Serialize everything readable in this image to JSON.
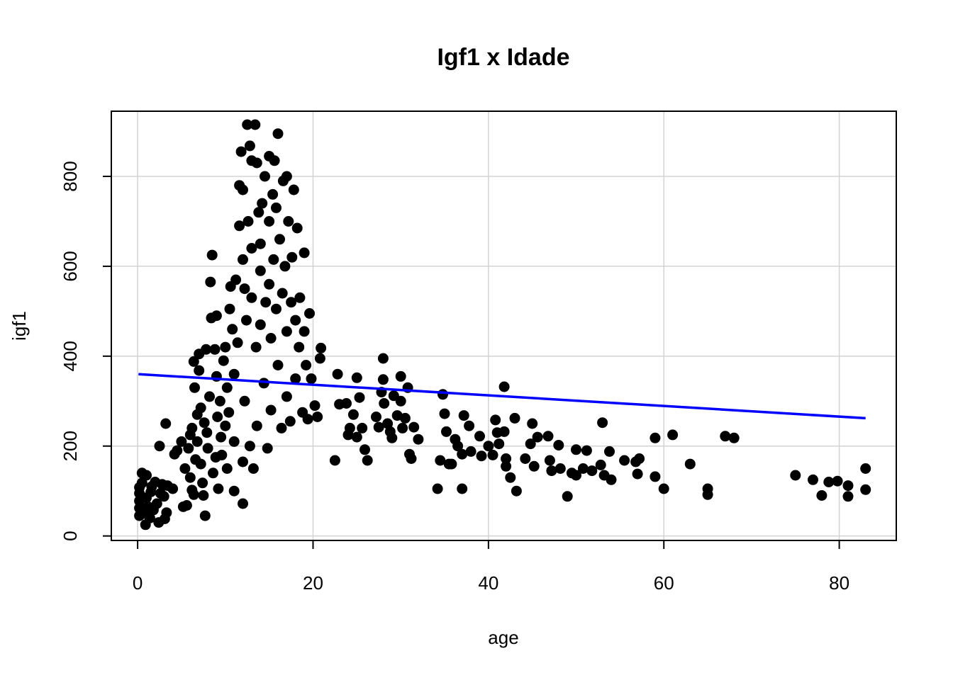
{
  "chart_data": {
    "type": "scatter",
    "title": "Igf1 x Idade",
    "xlabel": "age",
    "ylabel": "igf1",
    "xlim": [
      -3,
      86.5
    ],
    "ylim": [
      -10,
      945
    ],
    "x_ticks": [
      0,
      20,
      40,
      60,
      80
    ],
    "y_ticks": [
      0,
      200,
      400,
      600,
      800
    ],
    "grid": true,
    "point_color": "#000000",
    "trend_color": "#0000ff",
    "trend_line": {
      "x": [
        0.1,
        83
      ],
      "y": [
        360,
        262
      ]
    },
    "series": [
      {
        "points": [
          [
            0.2,
            108
          ],
          [
            0.2,
            95
          ],
          [
            0.2,
            78
          ],
          [
            0.2,
            62
          ],
          [
            0.2,
            45
          ],
          [
            0.5,
            140
          ],
          [
            0.5,
            118
          ],
          [
            0.8,
            50
          ],
          [
            0.9,
            25
          ],
          [
            1.0,
            135
          ],
          [
            1.0,
            85
          ],
          [
            1.2,
            65
          ],
          [
            1.4,
            40
          ],
          [
            1.5,
            98
          ],
          [
            1.6,
            110
          ],
          [
            1.8,
            58
          ],
          [
            2.0,
            120
          ],
          [
            2.2,
            72
          ],
          [
            2.4,
            30
          ],
          [
            2.5,
            200
          ],
          [
            2.6,
            95
          ],
          [
            2.8,
            115
          ],
          [
            3.0,
            88
          ],
          [
            3.1,
            38
          ],
          [
            3.2,
            250
          ],
          [
            3.3,
            52
          ],
          [
            3.4,
            112
          ],
          [
            4.0,
            105
          ],
          [
            4.2,
            182
          ],
          [
            4.5,
            190
          ],
          [
            5.0,
            210
          ],
          [
            5.2,
            65
          ],
          [
            5.4,
            150
          ],
          [
            5.6,
            68
          ],
          [
            5.8,
            195
          ],
          [
            6.0,
            225
          ],
          [
            6.0,
            130
          ],
          [
            6.2,
            102
          ],
          [
            6.2,
            240
          ],
          [
            6.4,
            388
          ],
          [
            6.4,
            92
          ],
          [
            6.5,
            330
          ],
          [
            6.6,
            170
          ],
          [
            6.8,
            270
          ],
          [
            6.8,
            210
          ],
          [
            7.0,
            405
          ],
          [
            7.0,
            368
          ],
          [
            7.2,
            285
          ],
          [
            7.2,
            160
          ],
          [
            7.4,
            118
          ],
          [
            7.5,
            90
          ],
          [
            7.6,
            252
          ],
          [
            7.7,
            45
          ],
          [
            7.8,
            415
          ],
          [
            7.9,
            230
          ],
          [
            8.0,
            195
          ],
          [
            8.2,
            310
          ],
          [
            8.3,
            565
          ],
          [
            8.4,
            485
          ],
          [
            8.5,
            625
          ],
          [
            8.6,
            140
          ],
          [
            8.8,
            415
          ],
          [
            8.9,
            175
          ],
          [
            9.0,
            490
          ],
          [
            9.0,
            355
          ],
          [
            9.1,
            265
          ],
          [
            9.2,
            105
          ],
          [
            9.4,
            300
          ],
          [
            9.5,
            220
          ],
          [
            9.6,
            180
          ],
          [
            9.8,
            390
          ],
          [
            10.0,
            245
          ],
          [
            10.0,
            420
          ],
          [
            10.2,
            150
          ],
          [
            10.2,
            330
          ],
          [
            10.4,
            275
          ],
          [
            10.5,
            505
          ],
          [
            10.6,
            555
          ],
          [
            10.8,
            460
          ],
          [
            11.0,
            100
          ],
          [
            11.0,
            210
          ],
          [
            11.0,
            360
          ],
          [
            11.2,
            570
          ],
          [
            11.4,
            430
          ],
          [
            11.6,
            690
          ],
          [
            11.6,
            780
          ],
          [
            11.8,
            855
          ],
          [
            12.0,
            72
          ],
          [
            12.0,
            165
          ],
          [
            12.0,
            770
          ],
          [
            12.0,
            615
          ],
          [
            12.2,
            550
          ],
          [
            12.2,
            300
          ],
          [
            12.4,
            480
          ],
          [
            12.5,
            915
          ],
          [
            12.6,
            700
          ],
          [
            12.8,
            868
          ],
          [
            12.8,
            200
          ],
          [
            13.0,
            835
          ],
          [
            13.0,
            640
          ],
          [
            13.0,
            530
          ],
          [
            13.2,
            150
          ],
          [
            13.4,
            915
          ],
          [
            13.5,
            420
          ],
          [
            13.6,
            830
          ],
          [
            13.6,
            245
          ],
          [
            13.8,
            720
          ],
          [
            14.0,
            650
          ],
          [
            14.0,
            590
          ],
          [
            14.0,
            470
          ],
          [
            14.2,
            740
          ],
          [
            14.4,
            340
          ],
          [
            14.5,
            800
          ],
          [
            14.6,
            520
          ],
          [
            14.8,
            195
          ],
          [
            15.0,
            845
          ],
          [
            15.0,
            700
          ],
          [
            15.0,
            560
          ],
          [
            15.2,
            440
          ],
          [
            15.2,
            280
          ],
          [
            15.4,
            760
          ],
          [
            15.5,
            615
          ],
          [
            15.6,
            835
          ],
          [
            15.8,
            730
          ],
          [
            15.8,
            505
          ],
          [
            16.0,
            895
          ],
          [
            16.0,
            380
          ],
          [
            16.2,
            660
          ],
          [
            16.4,
            240
          ],
          [
            16.5,
            540
          ],
          [
            16.6,
            790
          ],
          [
            16.8,
            600
          ],
          [
            17.0,
            800
          ],
          [
            17.0,
            455
          ],
          [
            17.0,
            310
          ],
          [
            17.2,
            700
          ],
          [
            17.4,
            255
          ],
          [
            17.5,
            520
          ],
          [
            17.6,
            620
          ],
          [
            17.8,
            770
          ],
          [
            18.0,
            350
          ],
          [
            18.0,
            480
          ],
          [
            18.2,
            685
          ],
          [
            18.4,
            420
          ],
          [
            18.5,
            530
          ],
          [
            18.8,
            275
          ],
          [
            19.0,
            630
          ],
          [
            19.0,
            455
          ],
          [
            19.2,
            380
          ],
          [
            19.4,
            260
          ],
          [
            19.6,
            495
          ],
          [
            19.8,
            350
          ],
          [
            20.2,
            290
          ],
          [
            20.5,
            265
          ],
          [
            20.8,
            395
          ],
          [
            20.9,
            418
          ],
          [
            22.5,
            168
          ],
          [
            22.8,
            360
          ],
          [
            23.0,
            293
          ],
          [
            23.8,
            295
          ],
          [
            24.0,
            225
          ],
          [
            24.2,
            240
          ],
          [
            24.6,
            270
          ],
          [
            25.0,
            352
          ],
          [
            25.0,
            220
          ],
          [
            25.3,
            308
          ],
          [
            25.6,
            240
          ],
          [
            25.9,
            192
          ],
          [
            26.2,
            168
          ],
          [
            27.2,
            265
          ],
          [
            27.5,
            242
          ],
          [
            27.8,
            320
          ],
          [
            28.0,
            395
          ],
          [
            28.0,
            348
          ],
          [
            28.1,
            295
          ],
          [
            28.5,
            250
          ],
          [
            28.8,
            232
          ],
          [
            29.0,
            218
          ],
          [
            29.2,
            312
          ],
          [
            29.6,
            268
          ],
          [
            30.0,
            355
          ],
          [
            30.0,
            300
          ],
          [
            30.2,
            240
          ],
          [
            30.5,
            262
          ],
          [
            30.8,
            330
          ],
          [
            31.0,
            182
          ],
          [
            31.2,
            172
          ],
          [
            31.5,
            242
          ],
          [
            32.0,
            215
          ],
          [
            34.2,
            105
          ],
          [
            34.5,
            168
          ],
          [
            34.8,
            315
          ],
          [
            35.0,
            272
          ],
          [
            35.2,
            232
          ],
          [
            35.5,
            160
          ],
          [
            35.8,
            160
          ],
          [
            36.2,
            215
          ],
          [
            36.5,
            200
          ],
          [
            37.0,
            182
          ],
          [
            37.0,
            105
          ],
          [
            37.2,
            268
          ],
          [
            37.8,
            245
          ],
          [
            38.0,
            188
          ],
          [
            39.0,
            222
          ],
          [
            39.2,
            178
          ],
          [
            40.0,
            200
          ],
          [
            40.5,
            180
          ],
          [
            40.8,
            258
          ],
          [
            41.0,
            230
          ],
          [
            41.2,
            205
          ],
          [
            41.8,
            332
          ],
          [
            41.8,
            232
          ],
          [
            42.0,
            172
          ],
          [
            42.0,
            155
          ],
          [
            42.5,
            130
          ],
          [
            43.0,
            262
          ],
          [
            43.2,
            100
          ],
          [
            44.2,
            172
          ],
          [
            44.8,
            205
          ],
          [
            45.0,
            250
          ],
          [
            45.2,
            155
          ],
          [
            45.6,
            220
          ],
          [
            46.8,
            222
          ],
          [
            47.0,
            168
          ],
          [
            47.2,
            145
          ],
          [
            48.0,
            202
          ],
          [
            48.2,
            150
          ],
          [
            49.0,
            88
          ],
          [
            49.5,
            140
          ],
          [
            50.0,
            192
          ],
          [
            50.0,
            135
          ],
          [
            50.8,
            150
          ],
          [
            51.2,
            190
          ],
          [
            51.8,
            145
          ],
          [
            52.8,
            158
          ],
          [
            53.0,
            252
          ],
          [
            53.2,
            135
          ],
          [
            53.8,
            188
          ],
          [
            54.0,
            125
          ],
          [
            55.5,
            168
          ],
          [
            56.8,
            165
          ],
          [
            57.0,
            138
          ],
          [
            57.2,
            172
          ],
          [
            59.0,
            218
          ],
          [
            59.0,
            132
          ],
          [
            60.0,
            105
          ],
          [
            61.0,
            225
          ],
          [
            63.0,
            160
          ],
          [
            65.0,
            105
          ],
          [
            65.0,
            92
          ],
          [
            67.0,
            222
          ],
          [
            68.0,
            218
          ],
          [
            75.0,
            135
          ],
          [
            77.0,
            125
          ],
          [
            78.0,
            90
          ],
          [
            78.8,
            120
          ],
          [
            79.8,
            122
          ],
          [
            81.0,
            112
          ],
          [
            81.0,
            88
          ],
          [
            83.0,
            150
          ],
          [
            83.0,
            103
          ]
        ]
      }
    ]
  }
}
